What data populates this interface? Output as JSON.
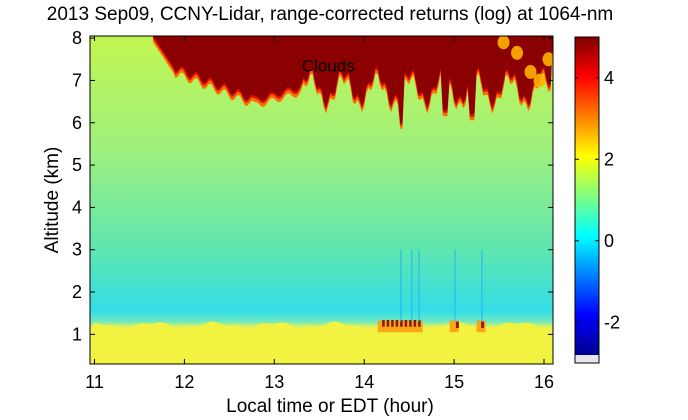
{
  "chart_data": {
    "type": "heatmap",
    "title": "2013 Sep09, CCNY-Lidar, range-corrected returns (log) at 1064-nm",
    "xlabel": "Local time or EDT (hour)",
    "ylabel": "Altitude (km)",
    "xlim": [
      10.95,
      16.1
    ],
    "ylim": [
      0.3,
      8.05
    ],
    "x_ticks": [
      11,
      12,
      13,
      14,
      15,
      16
    ],
    "y_ticks": [
      1,
      2,
      3,
      4,
      5,
      6,
      7,
      8
    ],
    "colorbar": {
      "range": [
        -3,
        5
      ],
      "ticks": [
        -2,
        0,
        2,
        4
      ],
      "colormap": "jet"
    },
    "annotations": [
      {
        "text": "Clouds",
        "x": 13.6,
        "y": 7.35
      }
    ],
    "layers": [
      {
        "feature": "boundary layer aerosol",
        "altitude_range_km": [
          0.3,
          1.3
        ],
        "value": 2.8
      },
      {
        "feature": "free troposphere",
        "altitude_range_km": [
          1.3,
          6.5
        ],
        "value_range": [
          0.5,
          2.3
        ]
      },
      {
        "feature": "cloud layer",
        "time_range_h": [
          11.65,
          16.1
        ],
        "base_altitude_km": [
          6.5,
          7.4
        ],
        "top_altitude_km": 8.0,
        "value": 5
      }
    ],
    "grid": false,
    "legend": "none"
  }
}
